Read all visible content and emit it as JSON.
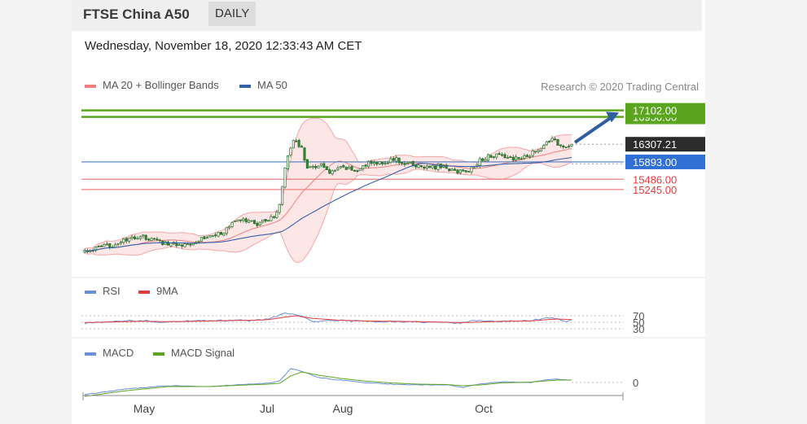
{
  "header": {
    "instrument": "FTSE China A50",
    "period": "DAILY",
    "timestamp": "Wednesday, November 18, 2020 12:33:43 AM CET"
  },
  "colors": {
    "candle": "#2e8b2e",
    "bollinger": "#f4a6a6",
    "bollinger_fill": "#fde2e2",
    "ma50": "#3462a8",
    "resistance": "#5aa51e",
    "support": "#f08080",
    "pivot": "#4a7cc6",
    "rsi": "#6b8fd6",
    "rsi_ma": "#e23b3b",
    "macd": "#6b8fd6",
    "macd_signal": "#5aa51e"
  },
  "chart_data": {
    "type": "candlestick",
    "price_chart": {
      "legend": [
        "MA 20 + Bollinger Bands",
        "MA 50"
      ],
      "copyright": "Research © 2020 Trading Central",
      "x_ticks": [
        "May",
        "Jul",
        "Aug",
        "Oct"
      ],
      "y_range": [
        13200,
        17400
      ],
      "anchors": [
        [
          0,
          13800
        ],
        [
          10,
          13950
        ],
        [
          20,
          14150
        ],
        [
          28,
          14000
        ],
        [
          36,
          13950
        ],
        [
          42,
          14100
        ],
        [
          50,
          14250
        ],
        [
          55,
          14550
        ],
        [
          62,
          14450
        ],
        [
          68,
          14600
        ],
        [
          70,
          14900
        ],
        [
          72,
          15800
        ],
        [
          75,
          16400
        ],
        [
          78,
          16250
        ],
        [
          80,
          15700
        ],
        [
          85,
          15850
        ],
        [
          88,
          15600
        ],
        [
          92,
          15750
        ],
        [
          98,
          15700
        ],
        [
          102,
          15850
        ],
        [
          108,
          15900
        ],
        [
          112,
          15950
        ],
        [
          115,
          15850
        ],
        [
          120,
          15800
        ],
        [
          124,
          15750
        ],
        [
          128,
          15800
        ],
        [
          132,
          15700
        ],
        [
          136,
          15650
        ],
        [
          140,
          15750
        ],
        [
          142,
          15950
        ],
        [
          146,
          16050
        ],
        [
          152,
          16000
        ],
        [
          156,
          15950
        ],
        [
          160,
          16050
        ],
        [
          162,
          16150
        ],
        [
          164,
          16250
        ],
        [
          166,
          16350
        ],
        [
          168,
          16400
        ],
        [
          171,
          16300
        ],
        [
          173,
          16180
        ],
        [
          175,
          16300
        ]
      ],
      "levels": {
        "resistance": [
          17102.0,
          16950.0
        ],
        "last_price": 16307.21,
        "pivot": 15893.0,
        "support": [
          15486.0,
          15245.0
        ]
      },
      "level_labels": {
        "resistance": [
          "17102.00",
          "16950.00"
        ],
        "last_price": "16307.21",
        "pivot": "15893.00",
        "support": [
          "15486.00",
          "15245.00"
        ]
      }
    },
    "rsi_chart": {
      "legend": [
        "RSI",
        "9MA"
      ],
      "y_range": [
        0,
        100
      ],
      "levels": [
        70,
        50,
        30
      ],
      "level_labels": [
        "70",
        "50",
        "30"
      ],
      "rsi_anchors": [
        [
          0,
          47
        ],
        [
          10,
          53
        ],
        [
          20,
          55
        ],
        [
          30,
          50
        ],
        [
          40,
          55
        ],
        [
          50,
          56
        ],
        [
          60,
          55
        ],
        [
          66,
          60
        ],
        [
          72,
          78
        ],
        [
          76,
          74
        ],
        [
          82,
          52
        ],
        [
          92,
          55
        ],
        [
          100,
          53
        ],
        [
          110,
          52
        ],
        [
          120,
          51
        ],
        [
          130,
          49
        ],
        [
          135,
          46
        ],
        [
          140,
          55
        ],
        [
          150,
          53
        ],
        [
          160,
          55
        ],
        [
          166,
          63
        ],
        [
          170,
          60
        ],
        [
          173,
          52
        ],
        [
          175,
          57
        ]
      ],
      "ma_anchors": [
        [
          0,
          49
        ],
        [
          10,
          51
        ],
        [
          20,
          53
        ],
        [
          30,
          52
        ],
        [
          40,
          53
        ],
        [
          50,
          55
        ],
        [
          60,
          56
        ],
        [
          66,
          58
        ],
        [
          72,
          66
        ],
        [
          76,
          70
        ],
        [
          82,
          62
        ],
        [
          92,
          56
        ],
        [
          100,
          54
        ],
        [
          110,
          53
        ],
        [
          120,
          52
        ],
        [
          130,
          50
        ],
        [
          135,
          49
        ],
        [
          140,
          50
        ],
        [
          150,
          53
        ],
        [
          160,
          54
        ],
        [
          166,
          58
        ],
        [
          170,
          60
        ],
        [
          175,
          58
        ]
      ]
    },
    "macd_chart": {
      "legend": [
        "MACD",
        "MACD Signal"
      ],
      "zero_label": "0",
      "y_range": [
        -300,
        300
      ],
      "macd_anchors": [
        [
          0,
          -150
        ],
        [
          15,
          -80
        ],
        [
          30,
          -40
        ],
        [
          45,
          -50
        ],
        [
          58,
          -20
        ],
        [
          66,
          -10
        ],
        [
          70,
          20
        ],
        [
          74,
          170
        ],
        [
          78,
          140
        ],
        [
          84,
          60
        ],
        [
          92,
          30
        ],
        [
          100,
          0
        ],
        [
          110,
          -20
        ],
        [
          120,
          -30
        ],
        [
          130,
          -30
        ],
        [
          136,
          -60
        ],
        [
          142,
          -20
        ],
        [
          150,
          10
        ],
        [
          160,
          0
        ],
        [
          166,
          30
        ],
        [
          170,
          40
        ],
        [
          175,
          30
        ]
      ],
      "signal_anchors": [
        [
          0,
          -170
        ],
        [
          15,
          -100
        ],
        [
          30,
          -50
        ],
        [
          45,
          -50
        ],
        [
          58,
          -30
        ],
        [
          66,
          -20
        ],
        [
          70,
          -10
        ],
        [
          74,
          80
        ],
        [
          78,
          130
        ],
        [
          84,
          90
        ],
        [
          92,
          50
        ],
        [
          100,
          20
        ],
        [
          110,
          -5
        ],
        [
          120,
          -20
        ],
        [
          130,
          -25
        ],
        [
          136,
          -40
        ],
        [
          142,
          -30
        ],
        [
          150,
          -5
        ],
        [
          160,
          5
        ],
        [
          166,
          20
        ],
        [
          170,
          30
        ],
        [
          175,
          30
        ]
      ]
    }
  }
}
